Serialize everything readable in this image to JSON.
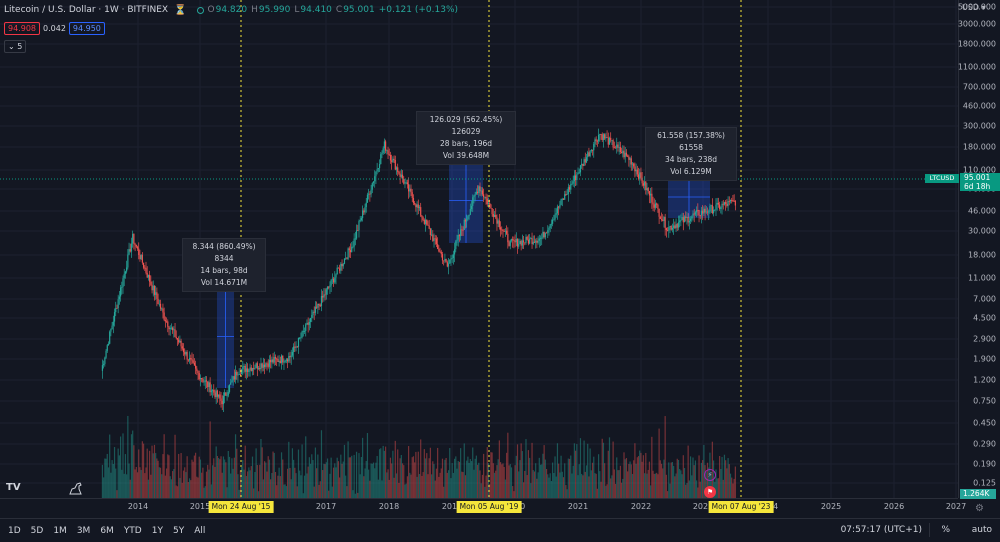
{
  "legend": {
    "title": "Litecoin / U.S. Dollar · 1W · BITFINEX",
    "o_label": "O",
    "o": "94.820",
    "h_label": "H",
    "h": "95.990",
    "l_label": "L",
    "l": "94.410",
    "c_label": "C",
    "c": "95.001",
    "change": "+0.121 (+0.13%)"
  },
  "price_boxes": {
    "sell": "94.908",
    "spread": "0.042",
    "buy": "94.950"
  },
  "indicators_count": "5",
  "currency": "USD",
  "price_axis": [
    "5000.000",
    "3000.000",
    "1800.000",
    "1100.000",
    "700.000",
    "460.000",
    "300.000",
    "180.000",
    "110.000",
    "70.000",
    "46.000",
    "30.000",
    "18.000",
    "11.000",
    "7.000",
    "4.500",
    "2.900",
    "1.900",
    "1.200",
    "0.750",
    "0.450",
    "0.290",
    "0.190",
    "0.125"
  ],
  "current_price": {
    "symbol": "LTCUSD",
    "price": "95.001",
    "countdown": "6d 18h"
  },
  "volume_label": "1.264K",
  "time_axis": [
    "2014",
    "2015",
    "2017",
    "2018",
    "2019",
    "2020",
    "2021",
    "2022",
    "2023",
    "2024",
    "2025",
    "2026",
    "2027"
  ],
  "date_flags": [
    "Mon 24 Aug '15",
    "Mon 05 Aug '19",
    "Mon 07 Aug '23"
  ],
  "measurements": [
    {
      "line1": "8.344 (860.49%) 8344",
      "line2": "14 bars, 98d",
      "line3": "Vol 14.671M"
    },
    {
      "line1": "126.029 (562.45%) 126029",
      "line2": "28 bars, 196d",
      "line3": "Vol 39.648M"
    },
    {
      "line1": "61.558 (157.38%) 61558",
      "line2": "34 bars, 238d",
      "line3": "Vol 6.129M"
    }
  ],
  "ranges": [
    "1D",
    "5D",
    "1M",
    "3M",
    "6M",
    "YTD",
    "1Y",
    "5Y",
    "All"
  ],
  "clock": "07:57:17 (UTC+1)",
  "pct_toggle": "%",
  "auto_toggle": "auto",
  "logo": "TV",
  "colors": {
    "up": "#26a69a",
    "down": "#ef5350",
    "background": "#131722",
    "grid": "#1c2030",
    "measure_fill": "#2962ff",
    "flag": "#f5e63b"
  },
  "icons": {
    "alert": "bell-icon",
    "settings": "gear-icon",
    "event": "lightning-icon",
    "flag": "country-flag-icon"
  },
  "chart_data": {
    "type": "candlestick",
    "symbol": "LTCUSD",
    "exchange": "BITFINEX",
    "interval": "1W",
    "y_scale": "log",
    "ylim": [
      0.1,
      5000
    ],
    "x_range": [
      "2013",
      "2027"
    ],
    "approx_path": [
      {
        "date": "2013-06",
        "close": 3
      },
      {
        "date": "2013-12",
        "close": 45
      },
      {
        "date": "2014-06",
        "close": 9
      },
      {
        "date": "2014-12",
        "close": 3
      },
      {
        "date": "2015-05",
        "close": 1.6
      },
      {
        "date": "2015-08",
        "close": 3
      },
      {
        "date": "2016-06",
        "close": 4
      },
      {
        "date": "2017-06",
        "close": 40
      },
      {
        "date": "2017-12",
        "close": 300
      },
      {
        "date": "2018-06",
        "close": 90
      },
      {
        "date": "2018-12",
        "close": 25
      },
      {
        "date": "2019-06",
        "close": 130
      },
      {
        "date": "2019-12",
        "close": 40
      },
      {
        "date": "2020-06",
        "close": 45
      },
      {
        "date": "2021-05",
        "close": 380
      },
      {
        "date": "2021-11",
        "close": 220
      },
      {
        "date": "2022-06",
        "close": 55
      },
      {
        "date": "2022-12",
        "close": 75
      },
      {
        "date": "2023-07",
        "close": 95
      }
    ],
    "current_close": 95.001
  }
}
